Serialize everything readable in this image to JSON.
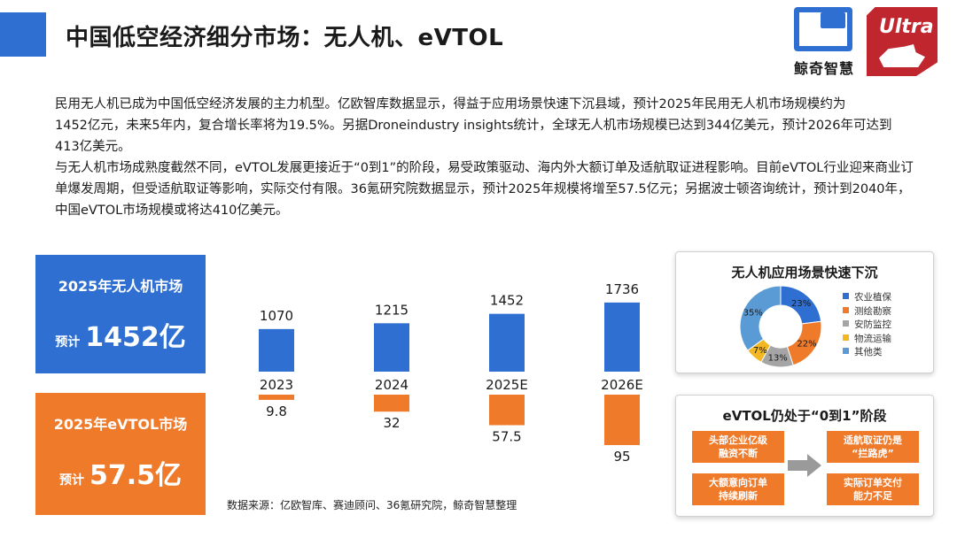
{
  "header": {
    "title": "中国低空经济细分市场：无人机、eVTOL"
  },
  "logos": {
    "jingqi_text": "鲸奇智慧",
    "ultra_text": "Ultra"
  },
  "body": {
    "p1_line1": "民用无人机已成为中国低空经济发展的主力机型。亿欧智库数据显示，得益于应用场景快速下沉县域，预计2025年民用无人机市场规模约为",
    "p1_line2": "1452亿元，未来5年内，复合增长率将为19.5%。另据Droneindustry insights统计，全球无人机市场规模已达到344亿美元，预计2026年可达到413亿美元。",
    "p2": "与无人机市场成熟度截然不同，eVTOL发展更接近于“0到1”的阶段，易受政策驱动、海内外大额订单及适航取证进程影响。目前eVTOL行业迎来商业订单爆发周期，但受适航取证等影响，实际交付有限。36氪研究院数据显示，预计2025年规模将增至57.5亿元；另据波士顿咨询统计，预计到2040年，中国eVTOL市场规模或将达410亿美元。"
  },
  "kpis": {
    "drone_title": "2025年无人机市场",
    "drone_prefix": "预计",
    "drone_value": "1452亿",
    "evtol_title": "2025年eVTOL市场",
    "evtol_prefix": "预计",
    "evtol_value": "57.5亿"
  },
  "source": "数据来源：亿欧智库、赛迪顾问、36氪研究院，鲸奇智慧整理",
  "card_drone": {
    "title": "无人机应用场景快速下沉"
  },
  "card_evtol": {
    "title": "eVTOL仍处于“0到1”阶段",
    "box_a": "头部企业亿级\n融资不断",
    "box_b": "大额意向订单\n持续刷新",
    "box_c": "适航取证仍是\n“拦路虎”",
    "box_d": "实际订单交付\n能力不足"
  },
  "colors": {
    "blue": "#2f6fd1",
    "orange": "#ee7a2a",
    "gray": "#a5a5a5",
    "yellow": "#f2b722",
    "lightblue": "#5b9bd5"
  },
  "chart_data": [
    {
      "type": "bar",
      "categories": [
        "2023",
        "2024",
        "2025E",
        "2026E"
      ],
      "series": [
        {
          "name": "",
          "values": [
            1070,
            1215,
            1452,
            1736
          ],
          "color": "#2f6fd1"
        },
        {
          "name": "",
          "values": [
            9.8,
            32,
            57.5,
            95
          ],
          "color": "#ee7a2a"
        }
      ],
      "title": "",
      "xlabel": "",
      "ylabel": "",
      "grid": false
    },
    {
      "type": "pie",
      "title": "无人机应用场景快速下沉",
      "labels": [
        "农业植保",
        "测绘勘察",
        "安防监控",
        "物流运输",
        "其他类"
      ],
      "values": [
        23,
        22,
        13,
        7,
        35
      ],
      "colors": [
        "#2f6fd1",
        "#ee7a2a",
        "#a5a5a5",
        "#f2b722",
        "#5b9bd5"
      ],
      "legend": "right"
    }
  ]
}
